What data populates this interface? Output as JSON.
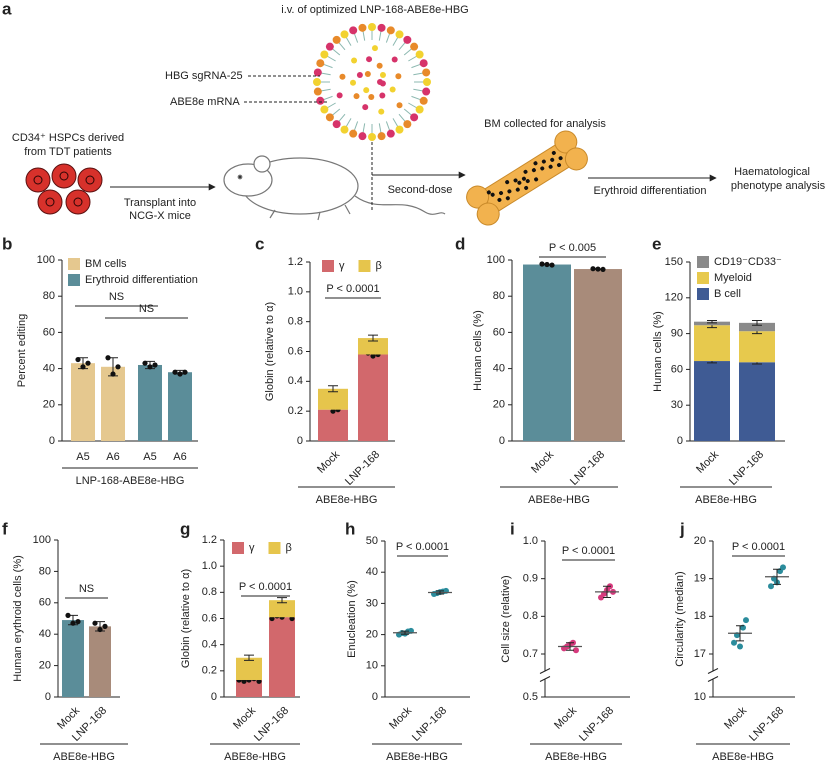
{
  "diagram": {
    "panel": "a",
    "title": "i.v. of optimized LNP-168-ABE8e-HBG",
    "labels": {
      "sgrna": "HBG sgRNA-25",
      "mrna": "ABE8e mRNA",
      "cells": [
        "CD34⁺ HSPCs derived",
        "from TDT patients"
      ],
      "transplant": [
        "Transplant into",
        "NCG-X mice"
      ],
      "second": "Second-dose",
      "bm": "BM collected for analysis",
      "ery": "Erythroid differentiation",
      "out": [
        "Haematological",
        "phenotype analysis"
      ]
    }
  },
  "chart_data": [
    {
      "panel": "b",
      "type": "bar",
      "ylabel": "Percent editing",
      "xlabel": "LNP-168-ABE8e-HBG",
      "categories": [
        "A5",
        "A6",
        "A5",
        "A6"
      ],
      "series": [
        {
          "name": "BM cells",
          "color": "#e5c88f",
          "values": [
            43,
            41,
            null,
            null
          ],
          "errors": [
            3,
            5,
            null,
            null
          ],
          "points": [
            [
              45,
              41,
              43
            ],
            [
              46,
              37,
              41
            ],
            null,
            null
          ]
        },
        {
          "name": "Erythroid differentiation",
          "color": "#5b8d99",
          "values": [
            null,
            null,
            42,
            38
          ],
          "errors": [
            null,
            null,
            2,
            1
          ],
          "points": [
            null,
            null,
            [
              43,
              41,
              42
            ],
            [
              38,
              37,
              38
            ]
          ]
        }
      ],
      "ylim": [
        0,
        100
      ],
      "yticks": [
        0,
        20,
        40,
        60,
        80,
        100
      ],
      "annotations": [
        "NS",
        "NS"
      ]
    },
    {
      "panel": "c",
      "type": "stacked_bar",
      "ylabel": "Globin (relative to α)",
      "xlabel": "ABE8e-HBG",
      "categories": [
        "Mock",
        "LNP-168"
      ],
      "series": [
        {
          "name": "γ",
          "color": "#d2686c",
          "values": [
            0.21,
            0.58
          ],
          "points": [
            [
              0.25,
              0.2,
              0.21
            ],
            [
              0.59,
              0.57,
              0.58
            ]
          ]
        },
        {
          "name": "β",
          "color": "#e6c54c",
          "values": [
            0.14,
            0.11
          ],
          "errors": [
            0.02,
            0.02
          ]
        }
      ],
      "ylim": [
        0,
        1.2
      ],
      "yticks": [
        0,
        0.2,
        0.4,
        0.6,
        0.8,
        {
          "value": 1,
          "label": "1.0"
        },
        1.2
      ],
      "annotations": [
        "P < 0.0001"
      ]
    },
    {
      "panel": "d",
      "type": "bar",
      "ylabel": "Human cells (%)",
      "xlabel": "ABE8e-HBG",
      "categories": [
        "Mock",
        "LNP-168"
      ],
      "series": [
        {
          "colors": [
            "#5b8d99",
            "#a88b7a"
          ],
          "values": [
            97.5,
            95
          ],
          "points": [
            [
              97.8,
              97.5,
              97.2
            ],
            [
              95.2,
              95,
              94.8
            ]
          ]
        }
      ],
      "ylim": [
        0,
        100
      ],
      "yticks": [
        0,
        20,
        40,
        60,
        80,
        100
      ],
      "annotations": [
        "P < 0.005"
      ]
    },
    {
      "panel": "e",
      "type": "stacked_bar",
      "ylabel": "Human cells (%)",
      "xlabel": "ABE8e-HBG",
      "categories": [
        "Mock",
        "LNP-168"
      ],
      "series": [
        {
          "name": "B cell",
          "color": "#3f5b94",
          "values": [
            67,
            66
          ],
          "errors": [
            1.5,
            1.5
          ]
        },
        {
          "name": "Myeloid",
          "color": "#e7c94d",
          "values": [
            30,
            26
          ],
          "errors": [
            2,
            2
          ]
        },
        {
          "name": "CD19⁻CD33⁻",
          "color": "#8a8a8a",
          "values": [
            3,
            7
          ],
          "errors": [
            1,
            2
          ]
        }
      ],
      "ylim": [
        0,
        150
      ],
      "yticks": [
        0,
        30,
        60,
        90,
        120,
        150
      ]
    },
    {
      "panel": "f",
      "type": "bar",
      "ylabel": "Human erythroid cells (%)",
      "xlabel": "ABE8e-HBG",
      "categories": [
        "Mock",
        "LNP-168"
      ],
      "series": [
        {
          "colors": [
            "#5b8d99",
            "#a88b7a"
          ],
          "values": [
            49,
            45
          ],
          "errors": [
            3,
            3
          ],
          "points": [
            [
              52,
              47,
              48
            ],
            [
              47,
              43,
              45
            ]
          ]
        }
      ],
      "ylim": [
        0,
        100
      ],
      "yticks": [
        0,
        20,
        40,
        60,
        80,
        100
      ],
      "annotations": [
        "NS"
      ]
    },
    {
      "panel": "g",
      "type": "stacked_bar",
      "ylabel": "Globin (relative to α)",
      "xlabel": "ABE8e-HBG",
      "categories": [
        "Mock",
        "LNP-168"
      ],
      "series": [
        {
          "name": "γ",
          "color": "#d2686c",
          "values": [
            0.13,
            0.61
          ],
          "points": [
            [
              0.13,
              0.12,
              0.13,
              0.14,
              0.12
            ],
            [
              0.6,
              0.62,
              0.61,
              0.63,
              0.6
            ]
          ]
        },
        {
          "name": "β",
          "color": "#e6c54c",
          "values": [
            0.17,
            0.13
          ],
          "errors": [
            0.02,
            0.02
          ]
        }
      ],
      "ylim": [
        0,
        1.2
      ],
      "yticks": [
        0,
        0.2,
        0.4,
        0.6,
        0.8,
        {
          "value": 1,
          "label": "1.0"
        },
        1.2
      ],
      "annotations": [
        "P < 0.0001"
      ]
    },
    {
      "panel": "h",
      "type": "strip",
      "ylabel": "Enucleation (%)",
      "xlabel": "ABE8e-HBG",
      "color": "#2b8c9c",
      "categories": [
        "Mock",
        "LNP-168"
      ],
      "points": [
        [
          20,
          21,
          20.5,
          21.2,
          20.3
        ],
        [
          33,
          33.8,
          33.3,
          34,
          33.6
        ]
      ],
      "means": [
        20.6,
        33.5
      ],
      "errors": [
        0.5,
        0.5
      ],
      "ylim": [
        0,
        50
      ],
      "yticks": [
        0,
        10,
        20,
        30,
        40,
        50
      ],
      "annotations": [
        "P < 0.0001"
      ]
    },
    {
      "panel": "i",
      "type": "strip",
      "ylabel": "Cell size (relative)",
      "xlabel": "ABE8e-HBG",
      "color": "#d63a7d",
      "categories": [
        "Mock",
        "LNP-168"
      ],
      "points": [
        [
          0.715,
          0.73,
          0.72,
          0.71,
          0.725
        ],
        [
          0.85,
          0.88,
          0.86,
          0.865,
          0.87
        ]
      ],
      "means": [
        0.72,
        0.865
      ],
      "errors": [
        0.01,
        0.015
      ],
      "ylim": [
        0.5,
        1
      ],
      "yticks": [
        0.5,
        0.7,
        0.8,
        0.9,
        {
          "value": 1,
          "label": "1.0"
        }
      ],
      "ybreak": [
        0.5,
        0.7
      ],
      "annotations": [
        "P < 0.0001"
      ]
    },
    {
      "panel": "j",
      "type": "strip",
      "ylabel": "Circularity (median)",
      "xlabel": "ABE8e-HBG",
      "color": "#2b8c9c",
      "categories": [
        "Mock",
        "LNP-168"
      ],
      "points": [
        [
          17.3,
          17.7,
          17.5,
          17.9,
          17.2
        ],
        [
          18.8,
          19.2,
          19.0,
          19.3,
          18.9
        ]
      ],
      "means": [
        17.55,
        19.05
      ],
      "errors": [
        0.2,
        0.2
      ],
      "ylim": [
        10,
        20
      ],
      "yticks": [
        10,
        17,
        18,
        19,
        20
      ],
      "ybreak": [
        10,
        17
      ],
      "annotations": [
        "P < 0.0001"
      ]
    }
  ]
}
